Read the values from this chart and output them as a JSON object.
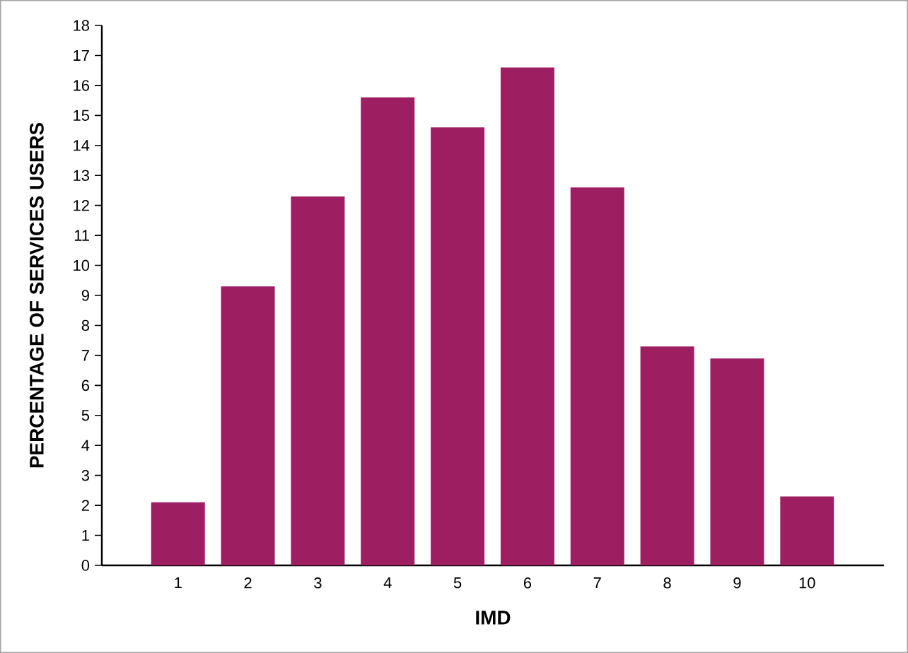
{
  "chart_data": {
    "type": "bar",
    "xlabel": "IMD",
    "ylabel": "PERCENTAGE OF SERVICES USERS",
    "categories": [
      "1",
      "2",
      "3",
      "4",
      "5",
      "6",
      "7",
      "8",
      "9",
      "10"
    ],
    "values": [
      2.1,
      9.3,
      12.3,
      15.6,
      14.6,
      16.6,
      12.6,
      7.3,
      6.9,
      2.3
    ],
    "color": "#9e1f61",
    "ylim": [
      0,
      18
    ],
    "yticks": [
      0,
      1,
      2,
      3,
      4,
      5,
      6,
      7,
      8,
      9,
      10,
      11,
      12,
      13,
      14,
      15,
      16,
      17,
      18
    ]
  }
}
